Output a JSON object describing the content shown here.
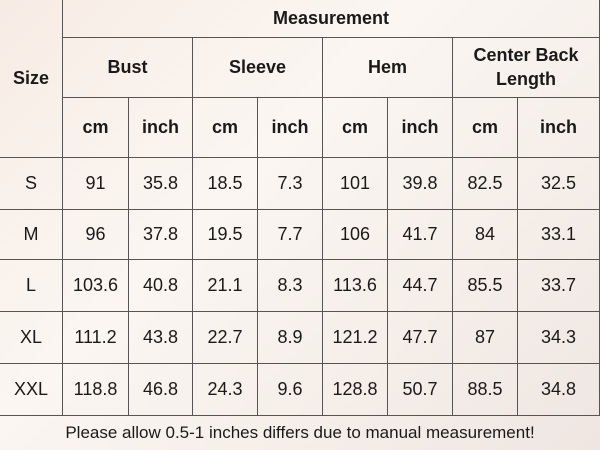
{
  "header": {
    "corner": "Size",
    "group": "Measurement",
    "columns": [
      "Bust",
      "Sleeve",
      "Hem",
      "Center Back Length"
    ],
    "units": [
      "cm",
      "inch",
      "cm",
      "inch",
      "cm",
      "inch",
      "cm",
      "inch"
    ]
  },
  "table": {
    "rows": [
      [
        "S",
        "91",
        "35.8",
        "18.5",
        "7.3",
        "101",
        "39.8",
        "82.5",
        "32.5"
      ],
      [
        "M",
        "96",
        "37.8",
        "19.5",
        "7.7",
        "106",
        "41.7",
        "84",
        "33.1"
      ],
      [
        "L",
        "103.6",
        "40.8",
        "21.1",
        "8.3",
        "113.6",
        "44.7",
        "85.5",
        "33.7"
      ],
      [
        "XL",
        "111.2",
        "43.8",
        "22.7",
        "8.9",
        "121.2",
        "47.7",
        "87",
        "34.3"
      ],
      [
        "XXL",
        "118.8",
        "46.8",
        "24.3",
        "9.6",
        "128.8",
        "50.7",
        "88.5",
        "34.8"
      ]
    ]
  },
  "footer": "Please allow 0.5-1 inches differs due to manual measurement!"
}
